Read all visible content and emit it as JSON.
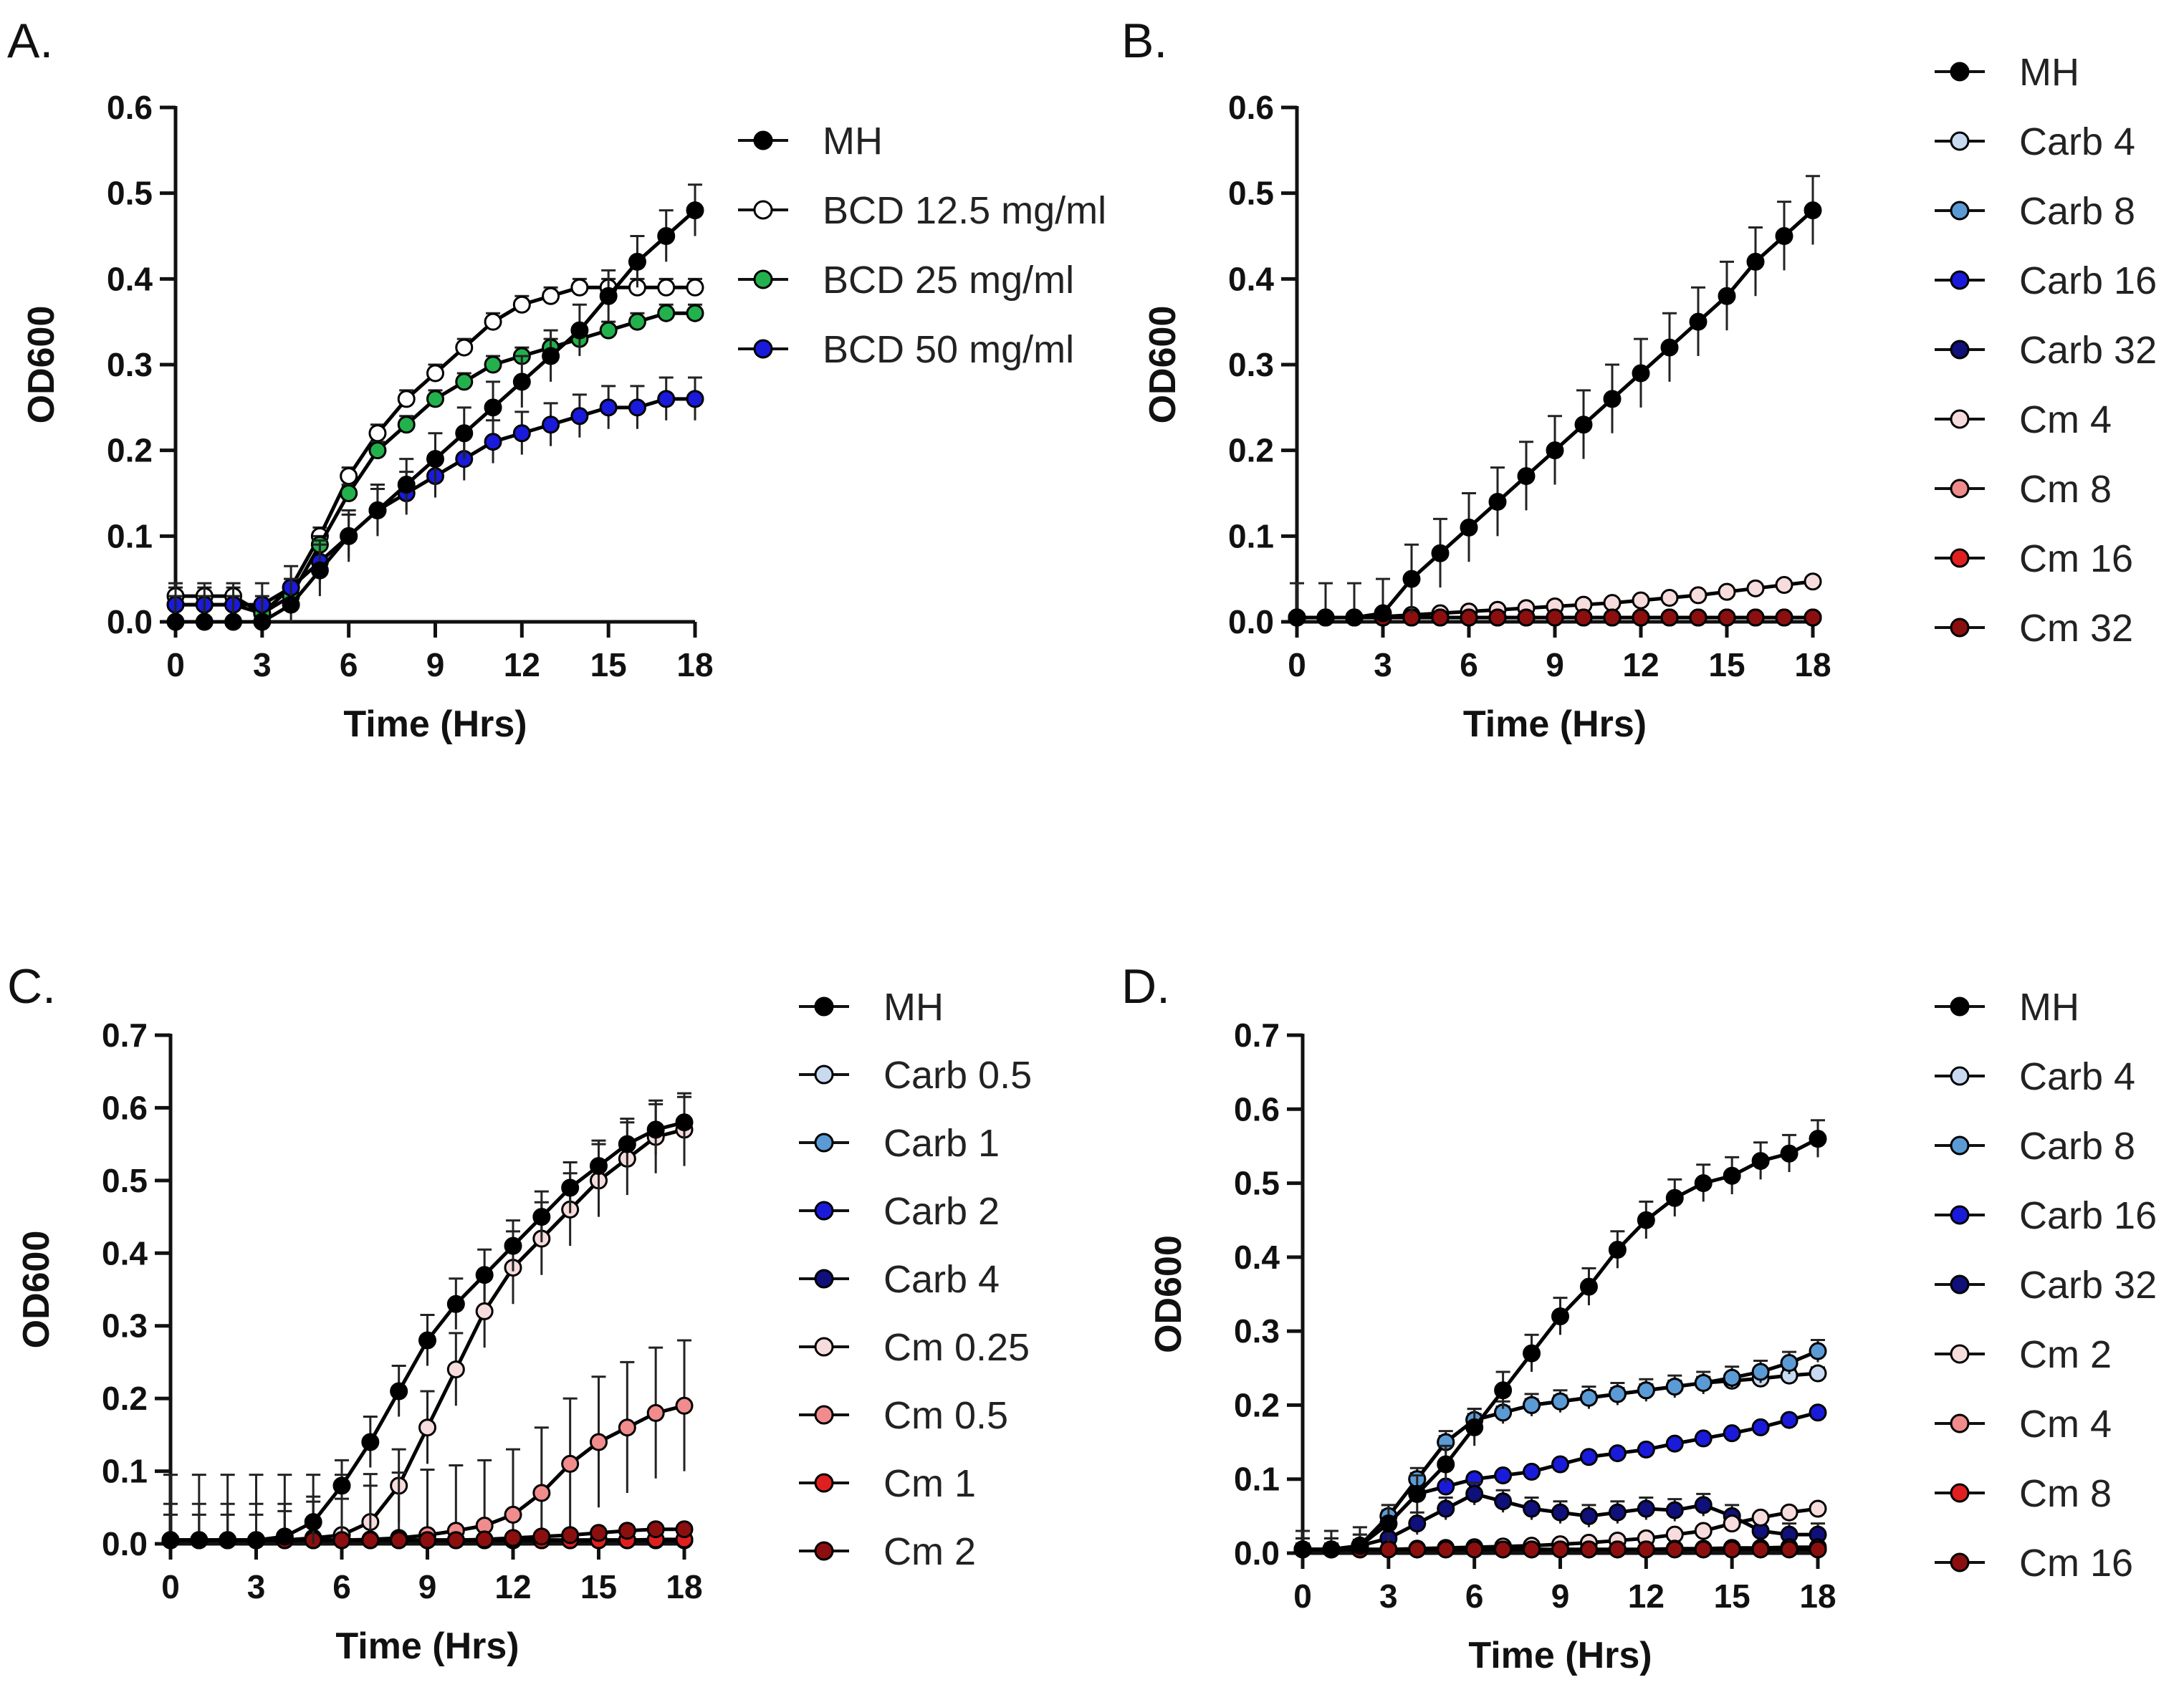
{
  "figure": {
    "panels": [
      "A",
      "B",
      "C",
      "D"
    ]
  },
  "chart_data": [
    {
      "panel": "A.",
      "type": "line",
      "xlabel": "Time (Hrs)",
      "ylabel": "OD600",
      "xlim": [
        0,
        18
      ],
      "ylim": [
        0,
        0.6
      ],
      "xticks": [
        0,
        3,
        6,
        9,
        12,
        15,
        18
      ],
      "yticks": [
        0.0,
        0.1,
        0.2,
        0.3,
        0.4,
        0.5,
        0.6
      ],
      "ytick_labels": [
        "0.0",
        "0.1",
        "0.2",
        "0.3",
        "0.4",
        "0.5",
        "0.6"
      ],
      "legend_position": "right",
      "x": [
        0,
        1,
        2,
        3,
        4,
        5,
        6,
        7,
        8,
        9,
        10,
        11,
        12,
        13,
        14,
        15,
        16,
        17,
        18
      ],
      "series": [
        {
          "name": "MH",
          "color": "#000000",
          "fill": "#000000",
          "err": 0.03,
          "values": [
            0.0,
            0.0,
            0.0,
            0.0,
            0.02,
            0.06,
            0.1,
            0.13,
            0.16,
            0.19,
            0.22,
            0.25,
            0.28,
            0.31,
            0.34,
            0.38,
            0.42,
            0.45,
            0.48
          ]
        },
        {
          "name": "BCD 12.5 mg/ml",
          "color": "#000000",
          "fill": "#ffffff",
          "err": 0.01,
          "values": [
            0.03,
            0.03,
            0.03,
            0.01,
            0.04,
            0.1,
            0.17,
            0.22,
            0.26,
            0.29,
            0.32,
            0.35,
            0.37,
            0.38,
            0.39,
            0.39,
            0.39,
            0.39,
            0.39
          ]
        },
        {
          "name": "BCD 25 mg/ml",
          "color": "#000000",
          "fill": "#22b14c",
          "err": 0.01,
          "values": [
            0.02,
            0.02,
            0.02,
            0.01,
            0.03,
            0.09,
            0.15,
            0.2,
            0.23,
            0.26,
            0.28,
            0.3,
            0.31,
            0.32,
            0.33,
            0.34,
            0.35,
            0.36,
            0.36
          ]
        },
        {
          "name": "BCD 50 mg/ml",
          "color": "#000000",
          "fill": "#1a1adb",
          "err": 0.025,
          "values": [
            0.02,
            0.02,
            0.02,
            0.02,
            0.04,
            0.07,
            0.1,
            0.13,
            0.15,
            0.17,
            0.19,
            0.21,
            0.22,
            0.23,
            0.24,
            0.25,
            0.25,
            0.26,
            0.26
          ]
        }
      ]
    },
    {
      "panel": "B.",
      "type": "line",
      "xlabel": "Time (Hrs)",
      "ylabel": "OD600",
      "xlim": [
        0,
        18
      ],
      "ylim": [
        0,
        0.6
      ],
      "xticks": [
        0,
        3,
        6,
        9,
        12,
        15,
        18
      ],
      "yticks": [
        0.0,
        0.1,
        0.2,
        0.3,
        0.4,
        0.5,
        0.6
      ],
      "ytick_labels": [
        "0.0",
        "0.1",
        "0.2",
        "0.3",
        "0.4",
        "0.5",
        "0.6"
      ],
      "legend_position": "right",
      "x": [
        0,
        1,
        2,
        3,
        4,
        5,
        6,
        7,
        8,
        9,
        10,
        11,
        12,
        13,
        14,
        15,
        16,
        17,
        18
      ],
      "series": [
        {
          "name": "MH",
          "color": "#000000",
          "fill": "#000000",
          "err": 0.04,
          "values": [
            0.005,
            0.005,
            0.005,
            0.01,
            0.05,
            0.08,
            0.11,
            0.14,
            0.17,
            0.2,
            0.23,
            0.26,
            0.29,
            0.32,
            0.35,
            0.38,
            0.42,
            0.45,
            0.48
          ]
        },
        {
          "name": "Carb 4",
          "color": "#000000",
          "fill": "#c7daf0",
          "err": 0,
          "values": [
            0.005,
            0.005,
            0.005,
            0.005,
            0.005,
            0.005,
            0.005,
            0.005,
            0.005,
            0.005,
            0.005,
            0.005,
            0.005,
            0.005,
            0.005,
            0.005,
            0.005,
            0.005,
            0.005
          ]
        },
        {
          "name": "Carb 8",
          "color": "#000000",
          "fill": "#5b9bd5",
          "err": 0,
          "values": [
            0.005,
            0.005,
            0.005,
            0.005,
            0.005,
            0.005,
            0.005,
            0.005,
            0.005,
            0.005,
            0.005,
            0.005,
            0.005,
            0.005,
            0.005,
            0.005,
            0.005,
            0.005,
            0.005
          ]
        },
        {
          "name": "Carb 16",
          "color": "#000000",
          "fill": "#1a1adb",
          "err": 0,
          "values": [
            0.005,
            0.005,
            0.005,
            0.005,
            0.005,
            0.005,
            0.005,
            0.005,
            0.005,
            0.005,
            0.005,
            0.005,
            0.005,
            0.005,
            0.005,
            0.005,
            0.005,
            0.005,
            0.005
          ]
        },
        {
          "name": "Carb 32",
          "color": "#000000",
          "fill": "#10107a",
          "err": 0,
          "values": [
            0.005,
            0.005,
            0.005,
            0.005,
            0.005,
            0.005,
            0.005,
            0.005,
            0.005,
            0.005,
            0.005,
            0.005,
            0.005,
            0.005,
            0.005,
            0.005,
            0.005,
            0.005,
            0.005
          ]
        },
        {
          "name": "Cm 4",
          "color": "#000000",
          "fill": "#f6dcdc",
          "err": 0.003,
          "values": [
            0.005,
            0.005,
            0.005,
            0.006,
            0.008,
            0.01,
            0.012,
            0.014,
            0.016,
            0.018,
            0.02,
            0.022,
            0.025,
            0.028,
            0.031,
            0.035,
            0.039,
            0.043,
            0.047
          ]
        },
        {
          "name": "Cm 8",
          "color": "#000000",
          "fill": "#f08c8c",
          "err": 0,
          "values": [
            0.005,
            0.005,
            0.005,
            0.005,
            0.005,
            0.005,
            0.005,
            0.005,
            0.005,
            0.005,
            0.005,
            0.005,
            0.005,
            0.005,
            0.005,
            0.005,
            0.005,
            0.005,
            0.005
          ]
        },
        {
          "name": "Cm 16",
          "color": "#000000",
          "fill": "#e02020",
          "err": 0,
          "values": [
            0.005,
            0.005,
            0.005,
            0.005,
            0.005,
            0.005,
            0.005,
            0.005,
            0.005,
            0.005,
            0.005,
            0.005,
            0.005,
            0.005,
            0.005,
            0.005,
            0.005,
            0.005,
            0.005
          ]
        },
        {
          "name": "Cm 32",
          "color": "#000000",
          "fill": "#8b0f0f",
          "err": 0,
          "values": [
            0.005,
            0.005,
            0.005,
            0.005,
            0.005,
            0.005,
            0.005,
            0.005,
            0.005,
            0.005,
            0.005,
            0.005,
            0.005,
            0.005,
            0.005,
            0.005,
            0.005,
            0.005,
            0.005
          ]
        }
      ]
    },
    {
      "panel": "C.",
      "type": "line",
      "xlabel": "Time (Hrs)",
      "ylabel": "OD600",
      "xlim": [
        0,
        18
      ],
      "ylim": [
        0,
        0.7
      ],
      "xticks": [
        0,
        3,
        6,
        9,
        12,
        15,
        18
      ],
      "yticks": [
        0.0,
        0.1,
        0.2,
        0.3,
        0.4,
        0.5,
        0.6,
        0.7
      ],
      "ytick_labels": [
        "0.0",
        "0.1",
        "0.2",
        "0.3",
        "0.4",
        "0.5",
        "0.6",
        "0.7"
      ],
      "legend_position": "right",
      "x": [
        0,
        1,
        2,
        3,
        4,
        5,
        6,
        7,
        8,
        9,
        10,
        11,
        12,
        13,
        14,
        15,
        16,
        17,
        18
      ],
      "series": [
        {
          "name": "MH",
          "color": "#000000",
          "fill": "#000000",
          "err": 0.035,
          "values": [
            0.005,
            0.005,
            0.005,
            0.005,
            0.01,
            0.03,
            0.08,
            0.14,
            0.21,
            0.28,
            0.33,
            0.37,
            0.41,
            0.45,
            0.49,
            0.52,
            0.55,
            0.57,
            0.58
          ]
        },
        {
          "name": "Carb 0.5",
          "color": "#000000",
          "fill": "#c7daf0",
          "err": 0,
          "values": [
            0.005,
            0.005,
            0.005,
            0.005,
            0.005,
            0.005,
            0.005,
            0.005,
            0.005,
            0.005,
            0.005,
            0.005,
            0.005,
            0.005,
            0.005,
            0.005,
            0.005,
            0.005,
            0.005
          ]
        },
        {
          "name": "Carb 1",
          "color": "#000000",
          "fill": "#5b9bd5",
          "err": 0,
          "values": [
            0.005,
            0.005,
            0.005,
            0.005,
            0.005,
            0.005,
            0.005,
            0.005,
            0.005,
            0.005,
            0.005,
            0.005,
            0.005,
            0.005,
            0.005,
            0.005,
            0.005,
            0.005,
            0.005
          ]
        },
        {
          "name": "Carb 2",
          "color": "#000000",
          "fill": "#1a1adb",
          "err": 0,
          "values": [
            0.005,
            0.005,
            0.005,
            0.005,
            0.005,
            0.005,
            0.005,
            0.005,
            0.005,
            0.005,
            0.005,
            0.005,
            0.005,
            0.005,
            0.005,
            0.005,
            0.005,
            0.005,
            0.005
          ]
        },
        {
          "name": "Carb 4",
          "color": "#000000",
          "fill": "#10107a",
          "err": 0,
          "values": [
            0.005,
            0.005,
            0.005,
            0.005,
            0.005,
            0.005,
            0.005,
            0.005,
            0.005,
            0.005,
            0.005,
            0.005,
            0.005,
            0.005,
            0.005,
            0.005,
            0.005,
            0.005,
            0.005
          ]
        },
        {
          "name": "Cm 0.25",
          "color": "#000000",
          "fill": "#f6dcdc",
          "err": 0.05,
          "values": [
            0.005,
            0.005,
            0.005,
            0.005,
            0.005,
            0.008,
            0.012,
            0.03,
            0.08,
            0.16,
            0.24,
            0.32,
            0.38,
            0.42,
            0.46,
            0.5,
            0.53,
            0.56,
            0.57
          ]
        },
        {
          "name": "Cm 0.5",
          "color": "#000000",
          "fill": "#f08c8c",
          "err": 0.09,
          "values": [
            0.005,
            0.005,
            0.005,
            0.005,
            0.005,
            0.005,
            0.005,
            0.006,
            0.008,
            0.012,
            0.018,
            0.025,
            0.04,
            0.07,
            0.11,
            0.14,
            0.16,
            0.18,
            0.19
          ]
        },
        {
          "name": "Cm 1",
          "color": "#000000",
          "fill": "#e02020",
          "err": 0,
          "values": [
            0.005,
            0.005,
            0.005,
            0.005,
            0.005,
            0.005,
            0.005,
            0.005,
            0.005,
            0.005,
            0.005,
            0.005,
            0.005,
            0.005,
            0.005,
            0.005,
            0.005,
            0.006,
            0.006
          ]
        },
        {
          "name": "Cm 2",
          "color": "#000000",
          "fill": "#8b0f0f",
          "err": 0,
          "values": [
            0.005,
            0.005,
            0.005,
            0.005,
            0.005,
            0.005,
            0.005,
            0.005,
            0.005,
            0.005,
            0.005,
            0.006,
            0.008,
            0.01,
            0.012,
            0.015,
            0.018,
            0.02,
            0.02
          ]
        }
      ]
    },
    {
      "panel": "D.",
      "type": "line",
      "xlabel": "Time (Hrs)",
      "ylabel": "OD600",
      "xlim": [
        0,
        18
      ],
      "ylim": [
        0,
        0.7
      ],
      "xticks": [
        0,
        3,
        6,
        9,
        12,
        15,
        18
      ],
      "yticks": [
        0.0,
        0.1,
        0.2,
        0.3,
        0.4,
        0.5,
        0.6,
        0.7
      ],
      "ytick_labels": [
        "0.0",
        "0.1",
        "0.2",
        "0.3",
        "0.4",
        "0.5",
        "0.6",
        "0.7"
      ],
      "legend_position": "right",
      "x": [
        0,
        1,
        2,
        3,
        4,
        5,
        6,
        7,
        8,
        9,
        10,
        11,
        12,
        13,
        14,
        15,
        16,
        17,
        18
      ],
      "series": [
        {
          "name": "MH",
          "color": "#000000",
          "fill": "#000000",
          "err": 0.025,
          "values": [
            0.005,
            0.005,
            0.01,
            0.04,
            0.08,
            0.12,
            0.17,
            0.22,
            0.27,
            0.32,
            0.36,
            0.41,
            0.45,
            0.48,
            0.5,
            0.51,
            0.53,
            0.54,
            0.56
          ]
        },
        {
          "name": "Carb 4",
          "color": "#000000",
          "fill": "#c7daf0",
          "err": 0.008,
          "values": [
            0.005,
            0.005,
            0.01,
            0.05,
            0.1,
            0.15,
            0.18,
            0.19,
            0.2,
            0.205,
            0.21,
            0.215,
            0.22,
            0.225,
            0.23,
            0.233,
            0.236,
            0.24,
            0.243
          ]
        },
        {
          "name": "Carb 8",
          "color": "#000000",
          "fill": "#5b9bd5",
          "err": 0.015,
          "values": [
            0.005,
            0.005,
            0.01,
            0.05,
            0.1,
            0.15,
            0.18,
            0.19,
            0.2,
            0.205,
            0.21,
            0.215,
            0.22,
            0.225,
            0.23,
            0.237,
            0.245,
            0.257,
            0.273
          ]
        },
        {
          "name": "Carb 16",
          "color": "#000000",
          "fill": "#1a1adb",
          "err": 0.004,
          "values": [
            0.005,
            0.005,
            0.01,
            0.04,
            0.08,
            0.09,
            0.1,
            0.105,
            0.11,
            0.12,
            0.13,
            0.135,
            0.14,
            0.148,
            0.155,
            0.162,
            0.17,
            0.18,
            0.19
          ]
        },
        {
          "name": "Carb 32",
          "color": "#000000",
          "fill": "#10107a",
          "err": 0.015,
          "values": [
            0.005,
            0.005,
            0.01,
            0.02,
            0.04,
            0.06,
            0.08,
            0.07,
            0.06,
            0.055,
            0.05,
            0.055,
            0.06,
            0.058,
            0.065,
            0.05,
            0.03,
            0.025,
            0.025
          ]
        },
        {
          "name": "Cm 2",
          "color": "#000000",
          "fill": "#f6dcdc",
          "err": 0.004,
          "values": [
            0.005,
            0.005,
            0.005,
            0.005,
            0.006,
            0.007,
            0.008,
            0.009,
            0.01,
            0.012,
            0.014,
            0.017,
            0.02,
            0.025,
            0.03,
            0.04,
            0.048,
            0.055,
            0.06
          ]
        },
        {
          "name": "Cm 4",
          "color": "#000000",
          "fill": "#f08c8c",
          "err": 0,
          "values": [
            0.005,
            0.005,
            0.005,
            0.005,
            0.005,
            0.005,
            0.005,
            0.005,
            0.005,
            0.005,
            0.005,
            0.005,
            0.005,
            0.006,
            0.006,
            0.007,
            0.007,
            0.008,
            0.008
          ]
        },
        {
          "name": "Cm 8",
          "color": "#000000",
          "fill": "#e02020",
          "err": 0,
          "values": [
            0.005,
            0.005,
            0.005,
            0.005,
            0.005,
            0.005,
            0.005,
            0.005,
            0.005,
            0.005,
            0.005,
            0.005,
            0.005,
            0.005,
            0.005,
            0.005,
            0.005,
            0.005,
            0.005
          ]
        },
        {
          "name": "Cm 16",
          "color": "#000000",
          "fill": "#8b0f0f",
          "err": 0,
          "values": [
            0.005,
            0.005,
            0.005,
            0.005,
            0.005,
            0.005,
            0.005,
            0.005,
            0.005,
            0.005,
            0.005,
            0.005,
            0.005,
            0.005,
            0.005,
            0.005,
            0.005,
            0.005,
            0.005
          ]
        }
      ]
    }
  ]
}
